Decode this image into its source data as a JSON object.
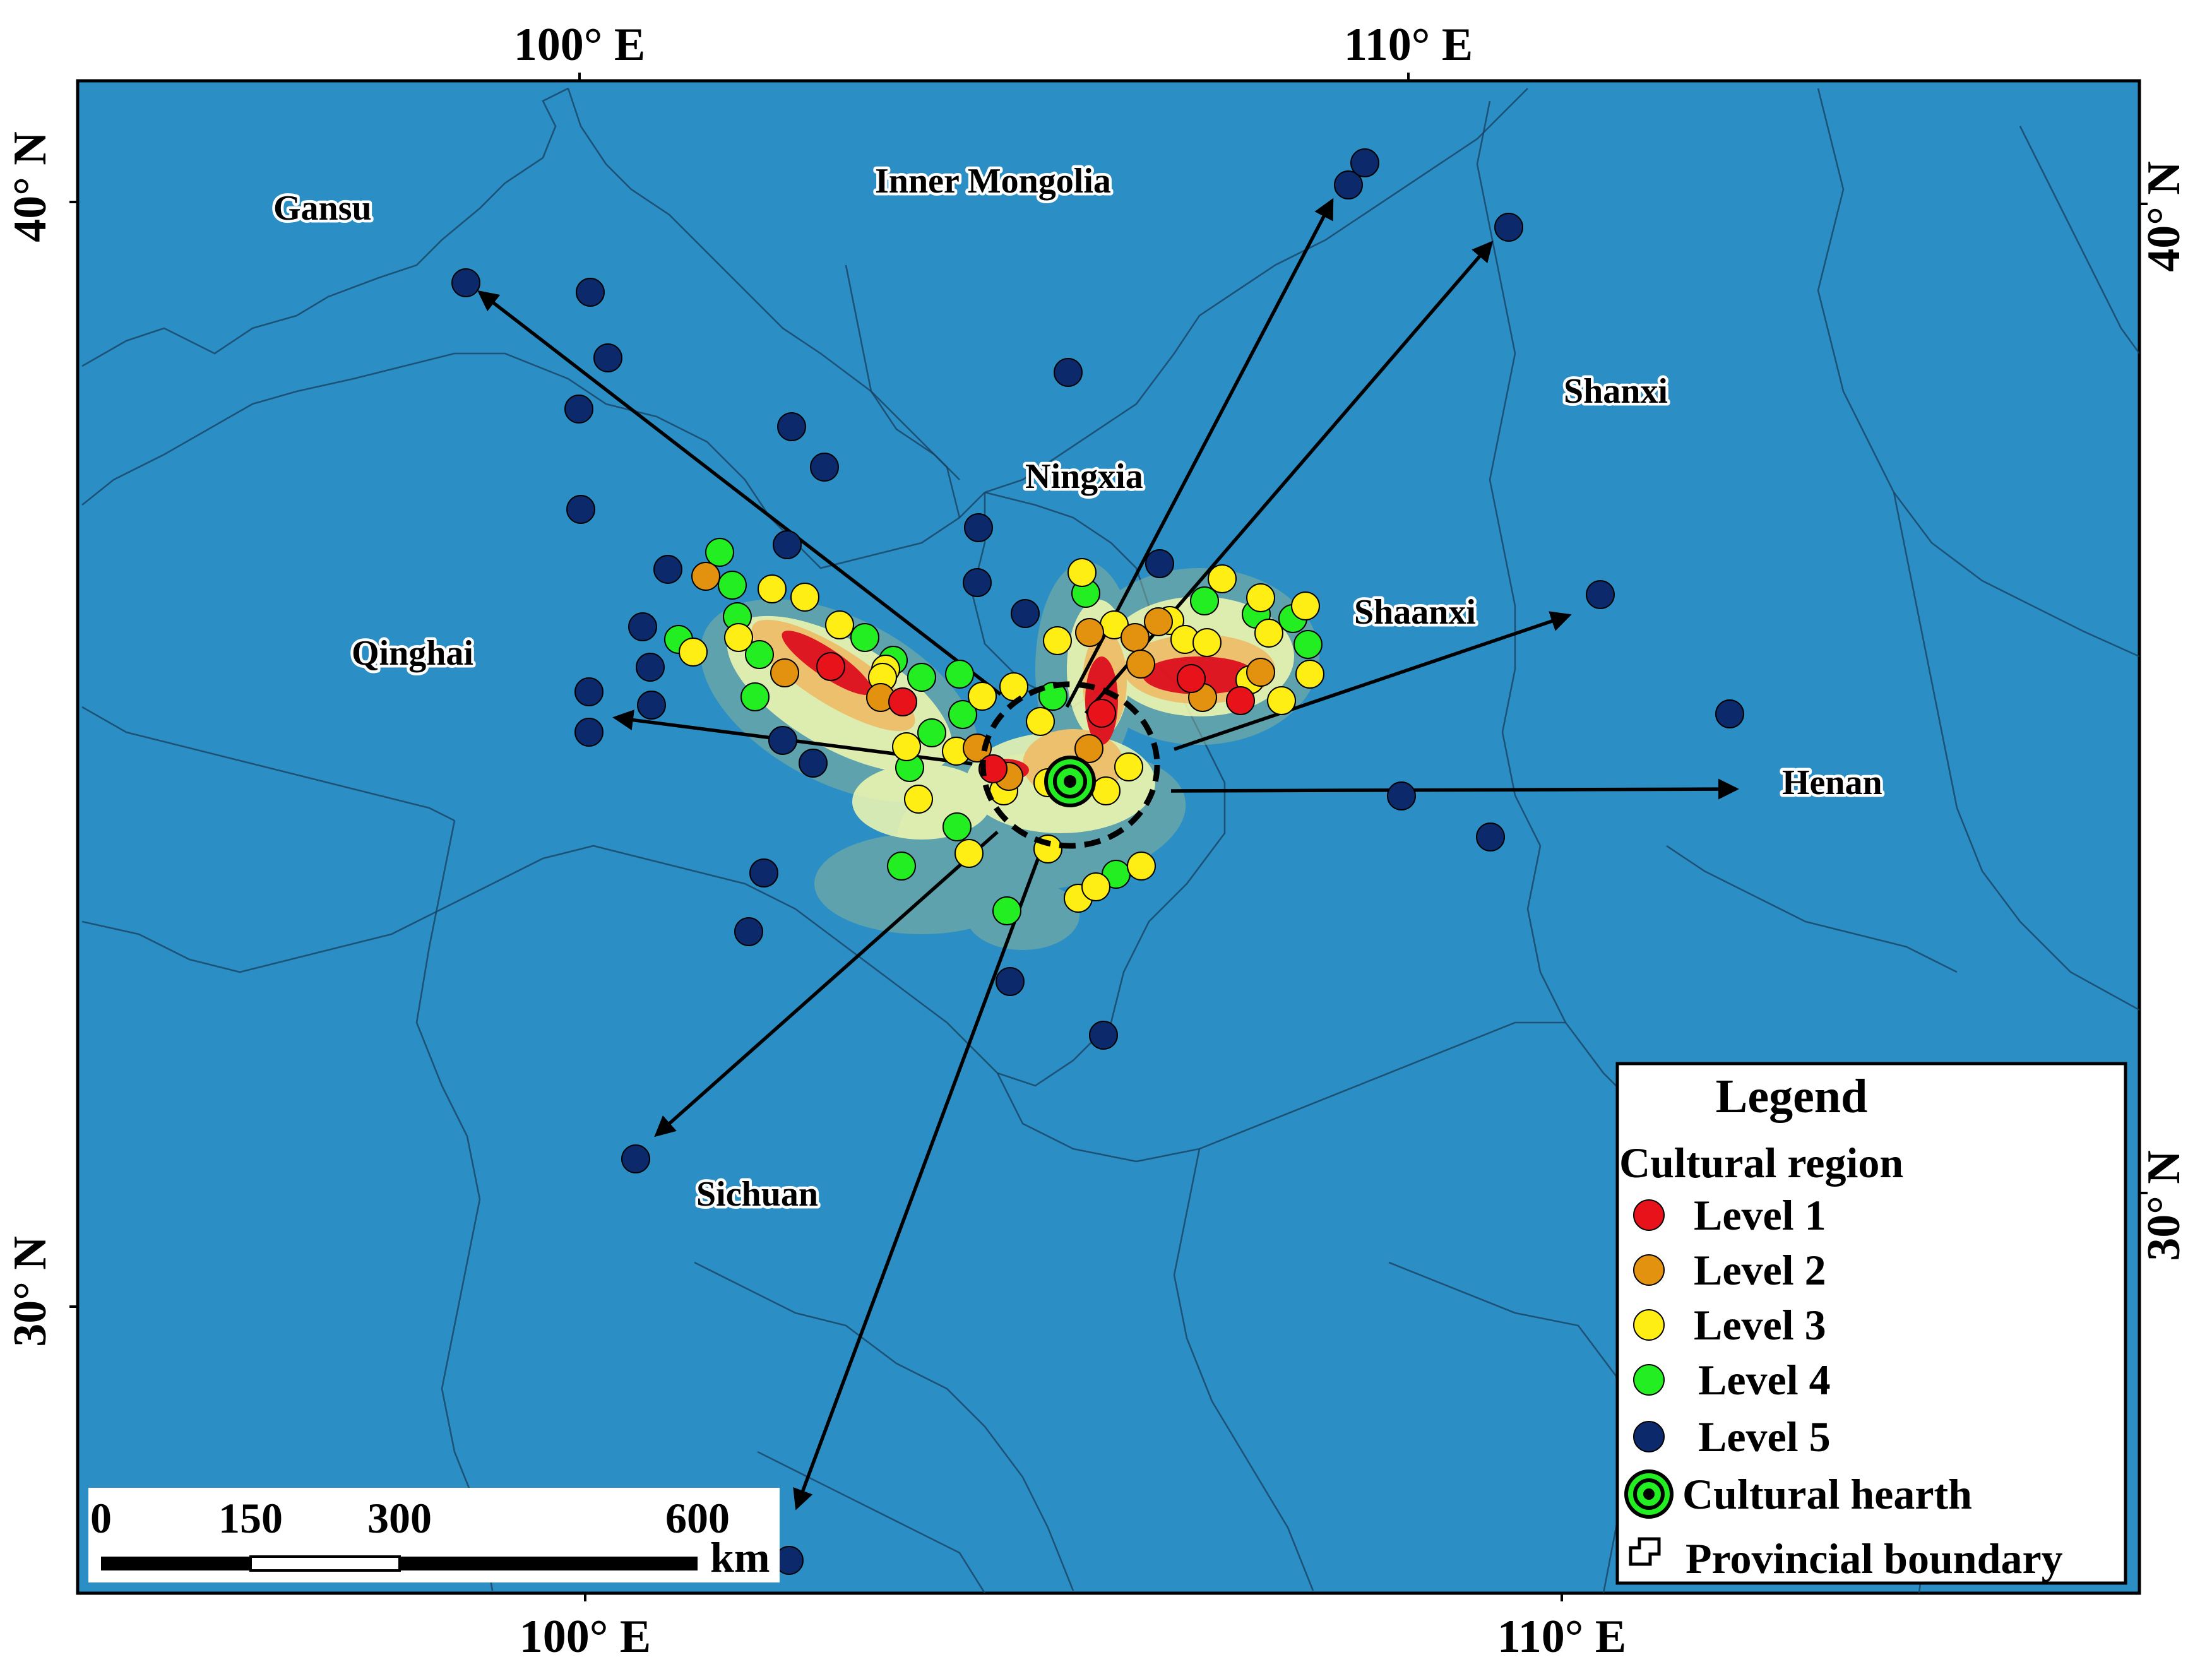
{
  "axes": {
    "top": [
      "100° E",
      "110° E"
    ],
    "bottom": [
      "100° E",
      "110° E"
    ],
    "left": [
      "40° N",
      "30° N"
    ],
    "right": [
      "40° N",
      "30° N"
    ]
  },
  "places": {
    "gansu": "Gansu",
    "inner_mongolia": "Inner Mongolia",
    "ningxia": "Ningxia",
    "shanxi": "Shanxi",
    "qinghai": "Qinghai",
    "shaanxi": "Shaanxi",
    "henan": "Henan",
    "sichuan": "Sichuan"
  },
  "legend": {
    "title": "Legend",
    "subtitle": "Cultural region",
    "items": [
      {
        "label": "Level 1",
        "color": "#e8121b"
      },
      {
        "label": "Level 2",
        "color": "#e3920f"
      },
      {
        "label": "Level 3",
        "color": "#ffee14"
      },
      {
        "label": "Level 4",
        "color": "#22ee22"
      },
      {
        "label": "Level 5",
        "color": "#0c2a6b"
      }
    ],
    "hearth": "Cultural hearth",
    "boundary": "Provincial boundary"
  },
  "scale_bar": {
    "ticks": [
      "0",
      "150",
      "300",
      "600"
    ],
    "unit": "km"
  },
  "colors": {
    "water": "#2b8fc6",
    "level1": "#e8121b",
    "level2": "#e3920f",
    "level3": "#ffee14",
    "level4": "#22ee22",
    "level5": "#0c2a6b"
  }
}
